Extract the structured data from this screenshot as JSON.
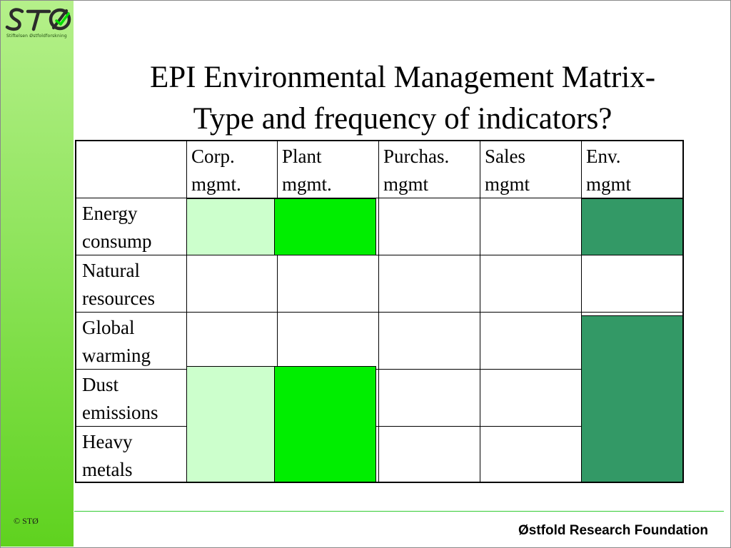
{
  "logo": {
    "text": "STØ",
    "tagline": "Stiftelsen Østfoldforskning"
  },
  "title": {
    "line1": "EPI Environmental Management Matrix-",
    "line2": "Type and frequency of indicators?"
  },
  "matrix": {
    "columns": [
      "Corp.\nmgmt.",
      "Plant\nmgmt.",
      "Purchas.\nmgmt",
      "Sales\nmgmt",
      "Env.\nmgmt"
    ],
    "rows": [
      "Energy\nconsump",
      "Natural\nresources",
      "Global\nwarming",
      "Dust\nemissions",
      "Heavy\nmetals"
    ]
  },
  "colors": {
    "light_green": "#ccffcc",
    "bright_green": "#00ee00",
    "dark_green": "#339966"
  },
  "sidebar": {
    "copyright": "© STØ"
  },
  "footer": {
    "organization": "Østfold Research Foundation"
  }
}
